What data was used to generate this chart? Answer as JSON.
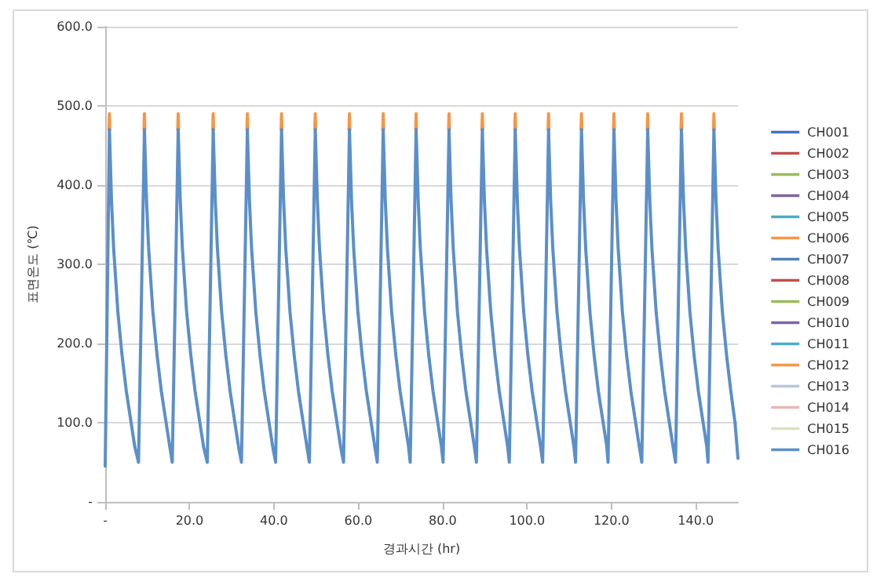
{
  "chart_data": {
    "type": "line",
    "xlabel": "경과시간 (hr)",
    "ylabel": "표면온도 (℃)",
    "xlim": [
      0,
      150
    ],
    "xticks": [
      {
        "value": 0,
        "label": "-"
      },
      {
        "value": 20,
        "label": "20.0"
      },
      {
        "value": 40,
        "label": "40.0"
      },
      {
        "value": 60,
        "label": "60.0"
      },
      {
        "value": 80,
        "label": "80.0"
      },
      {
        "value": 100,
        "label": "100.0"
      },
      {
        "value": 120,
        "label": "120.0"
      },
      {
        "value": 140,
        "label": "140.0"
      }
    ],
    "ylim": [
      0,
      600
    ],
    "yticks": [
      {
        "value": 0,
        "label": "-"
      },
      {
        "value": 100,
        "label": "100.0"
      },
      {
        "value": 200,
        "label": "200.0"
      },
      {
        "value": 300,
        "label": "300.0"
      },
      {
        "value": 400,
        "label": "400.0"
      },
      {
        "value": 500,
        "label": "500.0"
      },
      {
        "value": 600,
        "label": "600.0"
      }
    ],
    "grid": "y",
    "legend": "right",
    "marker": "none",
    "line_style": "solid",
    "series": [
      {
        "name": "CH001",
        "color": "#4472c4"
      },
      {
        "name": "CH002",
        "color": "#c0504d"
      },
      {
        "name": "CH003",
        "color": "#9bbb59"
      },
      {
        "name": "CH004",
        "color": "#8064a2"
      },
      {
        "name": "CH005",
        "color": "#4bacc6"
      },
      {
        "name": "CH006",
        "color": "#f79646"
      },
      {
        "name": "CH007",
        "color": "#4f81bd"
      },
      {
        "name": "CH008",
        "color": "#c0504d"
      },
      {
        "name": "CH009",
        "color": "#9bbb59"
      },
      {
        "name": "CH010",
        "color": "#8064a2"
      },
      {
        "name": "CH011",
        "color": "#4bacc6"
      },
      {
        "name": "CH012",
        "color": "#f79646",
        "x": [
          0.9,
          1.0,
          1.1,
          1.2,
          9.2,
          9.3,
          9.4,
          9.5,
          17.2,
          17.3,
          17.4,
          17.5,
          25.5,
          25.6,
          25.7,
          25.8,
          33.6,
          33.7,
          33.8,
          33.9,
          41.7,
          41.8,
          41.9,
          42.0,
          49.7,
          49.8,
          49.9,
          50.0,
          57.8,
          57.9,
          58.0,
          58.1,
          65.8,
          65.9,
          66.0,
          66.1,
          73.6,
          73.7,
          73.8,
          73.9,
          81.4,
          81.5,
          81.6,
          81.7,
          89.3,
          89.4,
          89.5,
          89.6,
          97.1,
          97.2,
          97.3,
          97.4,
          105.0,
          105.1,
          105.2,
          105.3,
          112.8,
          112.9,
          113.0,
          113.1,
          120.5,
          120.6,
          120.7,
          120.8,
          128.5,
          128.6,
          128.7,
          128.8,
          136.5,
          136.6,
          136.7,
          136.8,
          144.2,
          144.3,
          144.4
        ],
        "values": [
          470,
          490,
          470,
          null,
          470,
          490,
          470,
          null,
          470,
          490,
          470,
          null,
          470,
          490,
          470,
          null,
          470,
          490,
          470,
          null,
          470,
          490,
          470,
          null,
          470,
          490,
          470,
          null,
          470,
          490,
          470,
          null,
          470,
          490,
          470,
          null,
          470,
          490,
          470,
          null,
          470,
          490,
          470,
          null,
          470,
          490,
          470,
          null,
          470,
          490,
          470,
          null,
          470,
          490,
          470,
          null,
          470,
          490,
          470,
          null,
          470,
          490,
          470,
          null,
          470,
          490,
          470,
          null,
          470,
          490,
          470,
          null,
          470,
          490,
          470
        ]
      },
      {
        "name": "CH013",
        "color": "#b9c6e0"
      },
      {
        "name": "CH014",
        "color": "#e6b9b8"
      },
      {
        "name": "CH015",
        "color": "#d7e4bd"
      },
      {
        "name": "CH016",
        "color": "#5b8fc9",
        "x": [
          0,
          1.0,
          1.5,
          2.0,
          3.0,
          4.0,
          5.0,
          6.0,
          7.0,
          7.9,
          9.3,
          9.8,
          10.3,
          11.3,
          12.3,
          13.3,
          14.3,
          15.3,
          15.9,
          17.3,
          17.8,
          18.3,
          19.3,
          20.3,
          21.3,
          22.3,
          23.3,
          24.2,
          25.6,
          26.1,
          26.6,
          27.6,
          28.6,
          29.6,
          30.6,
          31.6,
          32.3,
          33.7,
          34.2,
          34.7,
          35.7,
          36.7,
          37.7,
          38.7,
          39.7,
          40.4,
          41.8,
          42.3,
          42.8,
          43.8,
          44.8,
          45.8,
          46.8,
          47.8,
          48.4,
          49.8,
          50.3,
          50.8,
          51.8,
          52.8,
          53.8,
          54.8,
          55.8,
          56.5,
          57.9,
          58.4,
          58.9,
          59.9,
          60.9,
          61.9,
          62.9,
          63.9,
          64.5,
          65.9,
          66.4,
          66.9,
          67.9,
          68.9,
          69.9,
          70.9,
          71.9,
          72.3,
          73.7,
          74.2,
          74.7,
          75.7,
          76.7,
          77.7,
          78.7,
          79.7,
          80.1,
          81.5,
          82.0,
          82.5,
          83.5,
          84.5,
          85.5,
          86.5,
          87.5,
          88.0,
          89.4,
          89.9,
          90.4,
          91.4,
          92.4,
          93.4,
          94.4,
          95.4,
          95.8,
          97.2,
          97.7,
          98.2,
          99.2,
          100.2,
          101.2,
          102.2,
          103.2,
          103.7,
          105.1,
          105.6,
          106.1,
          107.1,
          108.1,
          109.1,
          110.1,
          111.1,
          111.5,
          112.9,
          113.4,
          113.9,
          114.9,
          115.9,
          116.9,
          117.9,
          118.9,
          119.2,
          120.6,
          121.1,
          121.6,
          122.6,
          123.6,
          124.6,
          125.6,
          126.6,
          127.2,
          128.6,
          129.1,
          129.6,
          130.6,
          131.6,
          132.6,
          133.6,
          134.6,
          135.2,
          136.6,
          137.1,
          137.6,
          138.6,
          139.6,
          140.6,
          141.6,
          142.6,
          142.9,
          144.3,
          144.8,
          145.3,
          146.3,
          147.3,
          148.3,
          149.3,
          150.0
        ],
        "values": [
          45,
          470,
          380,
          320,
          240,
          185,
          140,
          105,
          70,
          50,
          470,
          380,
          320,
          240,
          185,
          140,
          105,
          70,
          50,
          470,
          380,
          320,
          240,
          185,
          140,
          105,
          70,
          50,
          470,
          380,
          320,
          240,
          185,
          140,
          105,
          70,
          50,
          470,
          380,
          320,
          240,
          185,
          140,
          105,
          70,
          50,
          470,
          380,
          320,
          240,
          185,
          140,
          105,
          70,
          50,
          470,
          380,
          320,
          240,
          185,
          140,
          105,
          70,
          50,
          470,
          380,
          320,
          240,
          185,
          140,
          105,
          70,
          50,
          470,
          380,
          320,
          240,
          185,
          140,
          105,
          70,
          50,
          470,
          380,
          320,
          240,
          185,
          140,
          105,
          70,
          50,
          470,
          380,
          320,
          240,
          185,
          140,
          105,
          70,
          50,
          470,
          380,
          320,
          240,
          185,
          140,
          105,
          70,
          50,
          470,
          380,
          320,
          240,
          185,
          140,
          105,
          70,
          50,
          470,
          380,
          320,
          240,
          185,
          140,
          105,
          70,
          50,
          470,
          380,
          320,
          240,
          185,
          140,
          105,
          70,
          50,
          470,
          380,
          320,
          240,
          185,
          140,
          105,
          70,
          50,
          470,
          380,
          320,
          240,
          185,
          140,
          105,
          70,
          50,
          470,
          380,
          320,
          240,
          185,
          140,
          105,
          70,
          50,
          470,
          380,
          320,
          240,
          185,
          140,
          100,
          55
        ]
      }
    ]
  }
}
